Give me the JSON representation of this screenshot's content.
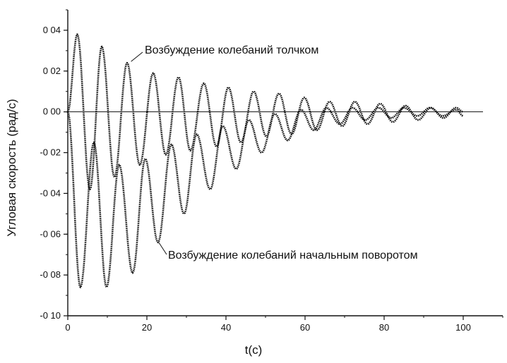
{
  "chart_data": {
    "type": "line",
    "title": "",
    "xlabel": "t(c)",
    "ylabel": "Угловая скорость (рад/с)",
    "xlim": [
      0,
      110
    ],
    "ylim": [
      -0.1,
      0.05
    ],
    "xticks": [
      0,
      20,
      40,
      60,
      80,
      100
    ],
    "xtick_labels": [
      "0",
      "20",
      "40",
      "60",
      "80",
      "100"
    ],
    "yticks": [
      0.04,
      0.02,
      0.0,
      -0.02,
      -0.04,
      -0.06,
      -0.08,
      -0.1
    ],
    "ytick_labels": [
      "0 04",
      "0 02",
      "0 00",
      "-0 02",
      "-0 04",
      "-0 06",
      "-0 08",
      "-0 10"
    ],
    "grid": false,
    "legend": "none",
    "zero_line": true,
    "series": [
      {
        "x": [
          0,
          2.4,
          5.6,
          8.6,
          11.8,
          15.0,
          18.2,
          21.6,
          24.8,
          28.0,
          31.0,
          34.4,
          37.6,
          40.6,
          43.8,
          47.0,
          50.2,
          53.4,
          56.6,
          59.8,
          63.0,
          66.2,
          69.4,
          72.6,
          75.8,
          79.0,
          82.2,
          85.4,
          88.6,
          91.8,
          95.0,
          98.2,
          100
        ],
        "values": [
          0.0,
          0.038,
          -0.038,
          0.032,
          -0.032,
          0.024,
          -0.026,
          0.019,
          -0.021,
          0.017,
          -0.019,
          0.014,
          -0.017,
          0.012,
          -0.015,
          0.01,
          -0.012,
          0.009,
          -0.011,
          0.007,
          -0.009,
          0.005,
          -0.007,
          0.005,
          -0.006,
          0.004,
          -0.005,
          0.003,
          -0.004,
          0.002,
          -0.003,
          0.002,
          0.0
        ]
      },
      {
        "x": [
          0,
          3.2,
          6.6,
          9.8,
          13.0,
          16.4,
          19.6,
          22.8,
          26.2,
          29.4,
          32.6,
          36.0,
          39.2,
          42.6,
          45.8,
          49.0,
          52.4,
          55.6,
          59.0,
          62.2,
          65.4,
          68.8,
          72.0,
          75.2,
          78.6,
          81.8,
          85.0,
          88.4,
          91.6,
          94.8,
          98.2,
          100
        ],
        "values": [
          0.0,
          -0.086,
          -0.015,
          -0.086,
          -0.026,
          -0.079,
          -0.023,
          -0.064,
          -0.016,
          -0.05,
          -0.011,
          -0.038,
          -0.007,
          -0.028,
          -0.004,
          -0.02,
          -0.001,
          -0.014,
          0.001,
          -0.009,
          0.002,
          -0.006,
          0.002,
          -0.004,
          0.002,
          -0.003,
          0.002,
          -0.002,
          0.002,
          -0.002,
          0.001,
          -0.002
        ]
      }
    ],
    "annotations": [
      {
        "text": "Возбуждение колебаний толчком",
        "x": 16.0,
        "y": 0.024
      },
      {
        "text": "Возбуждение колебаний начальным поворотом",
        "x": 23.0,
        "y": -0.064
      }
    ]
  }
}
